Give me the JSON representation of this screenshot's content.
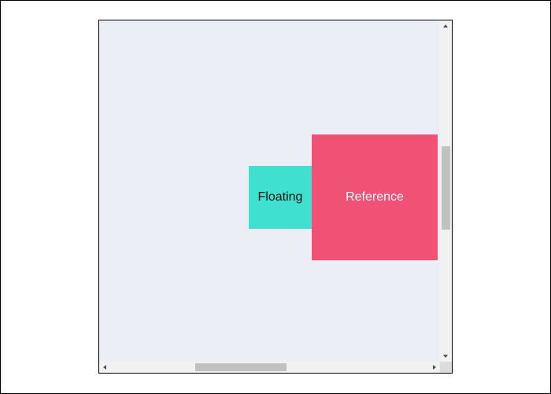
{
  "floating": {
    "label": "Floating",
    "color": "#40e0d0"
  },
  "reference": {
    "label": "Reference",
    "color": "#ef5274"
  },
  "container": {
    "background": "#ebeef5"
  }
}
